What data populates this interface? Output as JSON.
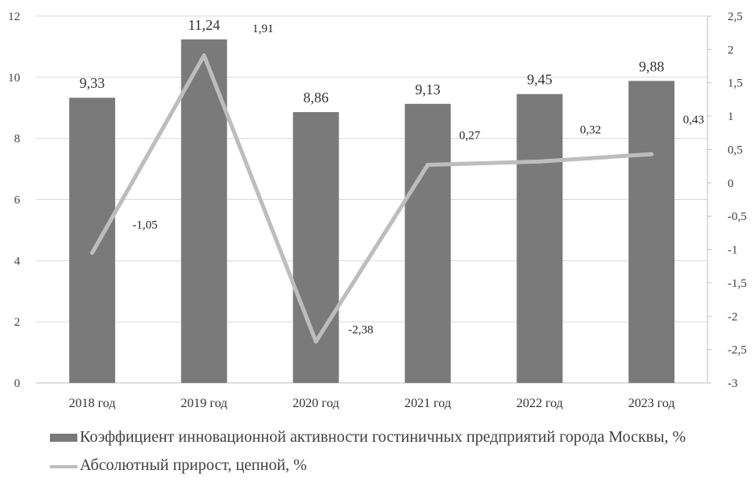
{
  "colors": {
    "bar": "#7a7a7a",
    "line": "#bdbdbd",
    "grid": "#d9d9d9",
    "axis": "#bfbfbf"
  },
  "chart_data": {
    "type": "bar",
    "categories": [
      "2018 год",
      "2019 год",
      "2020 год",
      "2021 год",
      "2022 год",
      "2023 год"
    ],
    "series": [
      {
        "name": "Коэффициент инновационной активности гостиничных предприятий города Москвы, %",
        "type": "bar",
        "axis": "left",
        "values": [
          9.33,
          11.24,
          8.86,
          9.13,
          9.45,
          9.88
        ],
        "labels": [
          "9,33",
          "11,24",
          "8,86",
          "9,13",
          "9,45",
          "9,88"
        ]
      },
      {
        "name": "Абсолютный прирост, цепной, %",
        "type": "line",
        "axis": "right",
        "values": [
          -1.05,
          1.91,
          -2.38,
          0.27,
          0.32,
          0.43
        ],
        "labels": [
          "-1,05",
          "1,91",
          "-2,38",
          "0,27",
          "0,32",
          "0,43"
        ]
      }
    ],
    "y_left": {
      "min": 0,
      "max": 12,
      "step": 2,
      "ticks": [
        "0",
        "2",
        "4",
        "6",
        "8",
        "10",
        "12"
      ]
    },
    "y_right": {
      "min": -3,
      "max": 2.5,
      "step": 0.5,
      "ticks": [
        "-3",
        "-2,5",
        "-2",
        "-1,5",
        "-1",
        "-0,5",
        "0",
        "0,5",
        "1",
        "1,5",
        "2",
        "2,5"
      ]
    },
    "grid": true,
    "legend_position": "bottom"
  }
}
